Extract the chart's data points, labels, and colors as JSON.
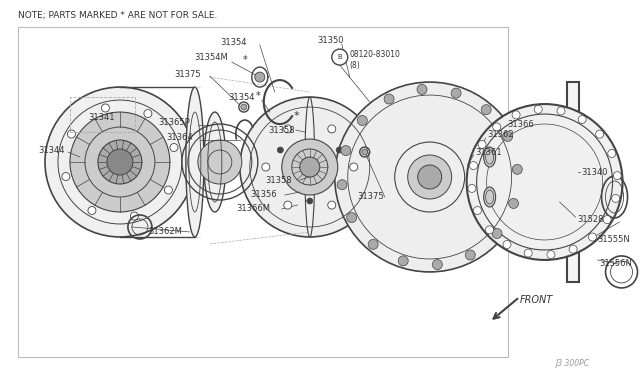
{
  "bg_color": "#ffffff",
  "line_color": "#555555",
  "note_text": "NOTE; PARTS MARKED * ARE NOT FOR SALE.",
  "diagram_id": "J3 300PC",
  "front_label": "FRONT"
}
